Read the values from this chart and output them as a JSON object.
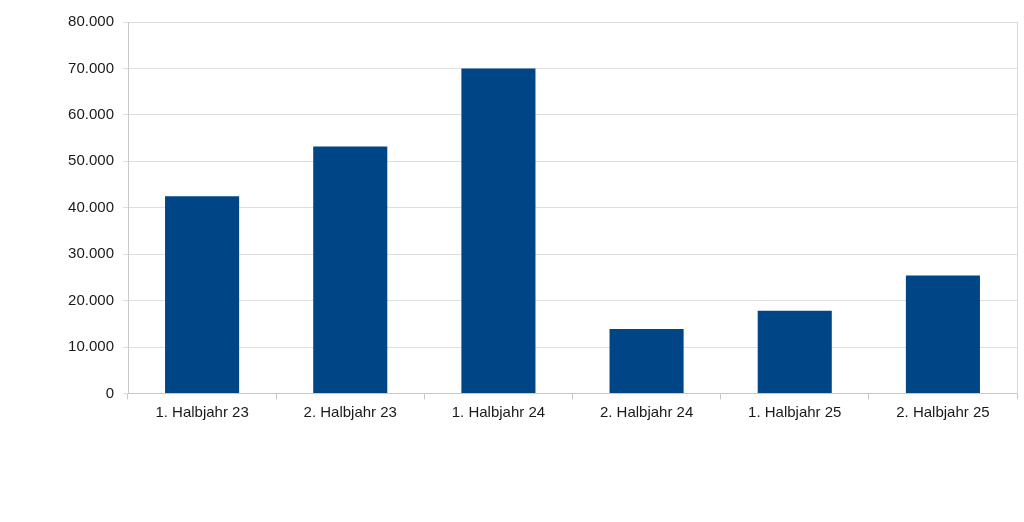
{
  "chart_data": {
    "type": "bar",
    "categories": [
      "1. Halbjahr 23",
      "2. Halbjahr 23",
      "1. Halbjahr 24",
      "2. Halbjahr 24",
      "1. Halbjahr 25",
      "2. Halbjahr 25"
    ],
    "values": [
      42500,
      53200,
      70000,
      13900,
      17800,
      25400
    ],
    "color": "#004586",
    "ylim": [
      0,
      80000
    ],
    "yticks": [
      {
        "value": 0,
        "label": "0"
      },
      {
        "value": 10000,
        "label": "10.000"
      },
      {
        "value": 20000,
        "label": "20.000"
      },
      {
        "value": 30000,
        "label": "30.000"
      },
      {
        "value": 40000,
        "label": "40.000"
      },
      {
        "value": 50000,
        "label": "50.000"
      },
      {
        "value": 60000,
        "label": "60.000"
      },
      {
        "value": 70000,
        "label": "70.000"
      },
      {
        "value": 80000,
        "label": "80.000"
      }
    ],
    "grid": "y"
  }
}
